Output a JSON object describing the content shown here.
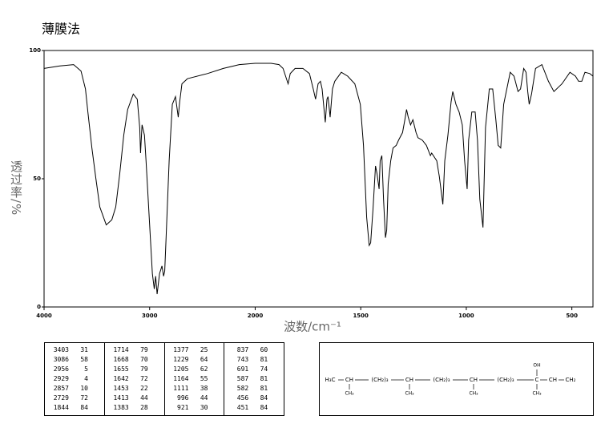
{
  "chart_data": {
    "type": "line",
    "title": "薄膜法",
    "xlabel": "波数/cm⁻¹",
    "ylabel": "透过率/%",
    "x": [
      4000,
      3850,
      3720,
      3650,
      3608,
      3585,
      3547,
      3509,
      3472,
      3411,
      3358,
      3321,
      3283,
      3245,
      3208,
      3155,
      3117,
      3094,
      3086,
      3072,
      3049,
      3034,
      3004,
      2974,
      2956,
      2943,
      2929,
      2906,
      2883,
      2868,
      2857,
      2845,
      2815,
      2785,
      2755,
      2729,
      2715,
      2694,
      2642,
      2453,
      2302,
      2151,
      2000,
      1925,
      1887,
      1868,
      1844,
      1834,
      1811,
      1774,
      1743,
      1725,
      1714,
      1702,
      1691,
      1683,
      1668,
      1660,
      1655,
      1645,
      1634,
      1623,
      1592,
      1562,
      1528,
      1502,
      1487,
      1472,
      1460,
      1453,
      1442,
      1430,
      1423,
      1413,
      1408,
      1400,
      1392,
      1383,
      1377,
      1370,
      1358,
      1347,
      1332,
      1321,
      1302,
      1291,
      1283,
      1275,
      1264,
      1253,
      1238,
      1229,
      1208,
      1189,
      1170,
      1164,
      1140,
      1128,
      1111,
      1102,
      1087,
      1072,
      1064,
      1049,
      1034,
      1019,
      1008,
      996,
      989,
      974,
      958,
      947,
      936,
      921,
      909,
      891,
      875,
      860,
      849,
      837,
      823,
      792,
      774,
      755,
      743,
      728,
      717,
      709,
      702,
      691,
      672,
      642,
      611,
      585,
      547,
      509,
      483,
      468,
      453,
      438,
      415,
      400
    ],
    "values": [
      93,
      94,
      94.5,
      92,
      85,
      76,
      62,
      50,
      39,
      32,
      34,
      39,
      52,
      67,
      77,
      83,
      81,
      70,
      60,
      71,
      67,
      57,
      35,
      13,
      7,
      12,
      5,
      13,
      16,
      12,
      14,
      26,
      57,
      79,
      82,
      74,
      80,
      87,
      89,
      91,
      93,
      94.5,
      95,
      95,
      94.5,
      93,
      87,
      91,
      93,
      93,
      91,
      85,
      81,
      87,
      88,
      85,
      72,
      81,
      82,
      74,
      85,
      88,
      91.5,
      90,
      87,
      79,
      63,
      35,
      24,
      25,
      38,
      55,
      52,
      46,
      57,
      59,
      42,
      27,
      30,
      48,
      57,
      62,
      63,
      65,
      68,
      73,
      77,
      74,
      71,
      73,
      68,
      66,
      65,
      63,
      59,
      60,
      57,
      51,
      40,
      57,
      67,
      80,
      84,
      79,
      76,
      71,
      57,
      46,
      65,
      76,
      76,
      65,
      42,
      31,
      70,
      85,
      85,
      73,
      63,
      62,
      79,
      91.5,
      90,
      84,
      85,
      93,
      91.5,
      84,
      79,
      83,
      93,
      94.5,
      88,
      84,
      87,
      91.5,
      90,
      88,
      88,
      91.5,
      91,
      90
    ],
    "color": "#000000",
    "xlim": [
      4000,
      400
    ],
    "xticks": [
      4000,
      3000,
      2000,
      1500,
      1000,
      500
    ],
    "ylim": [
      0,
      100
    ],
    "yticks": [
      0,
      50,
      100
    ],
    "grid": false
  },
  "peak_table": {
    "columns": [
      [
        [
          3403,
          31
        ],
        [
          3086,
          58
        ],
        [
          2956,
          5
        ],
        [
          2929,
          4
        ],
        [
          2857,
          10
        ],
        [
          2729,
          72
        ],
        [
          1844,
          84
        ]
      ],
      [
        [
          1714,
          79
        ],
        [
          1668,
          70
        ],
        [
          1655,
          79
        ],
        [
          1642,
          72
        ],
        [
          1453,
          22
        ],
        [
          1413,
          44
        ],
        [
          1383,
          28
        ]
      ],
      [
        [
          1377,
          25
        ],
        [
          1229,
          64
        ],
        [
          1205,
          62
        ],
        [
          1164,
          55
        ],
        [
          1111,
          38
        ],
        [
          996,
          44
        ],
        [
          921,
          30
        ]
      ],
      [
        [
          837,
          60
        ],
        [
          743,
          81
        ],
        [
          691,
          74
        ],
        [
          587,
          81
        ],
        [
          582,
          81
        ],
        [
          456,
          84
        ],
        [
          451,
          84
        ]
      ]
    ]
  },
  "structure": {
    "chain": [
      "H₃C",
      "CH",
      "(CH₂)₃",
      "CH",
      "(CH₂)₃",
      "CH",
      "(CH₂)₃",
      "C",
      "CH",
      "CH₂"
    ],
    "below": [
      "CH₃",
      "CH₃",
      "CH₃",
      "CH₃"
    ],
    "above": "OH"
  }
}
